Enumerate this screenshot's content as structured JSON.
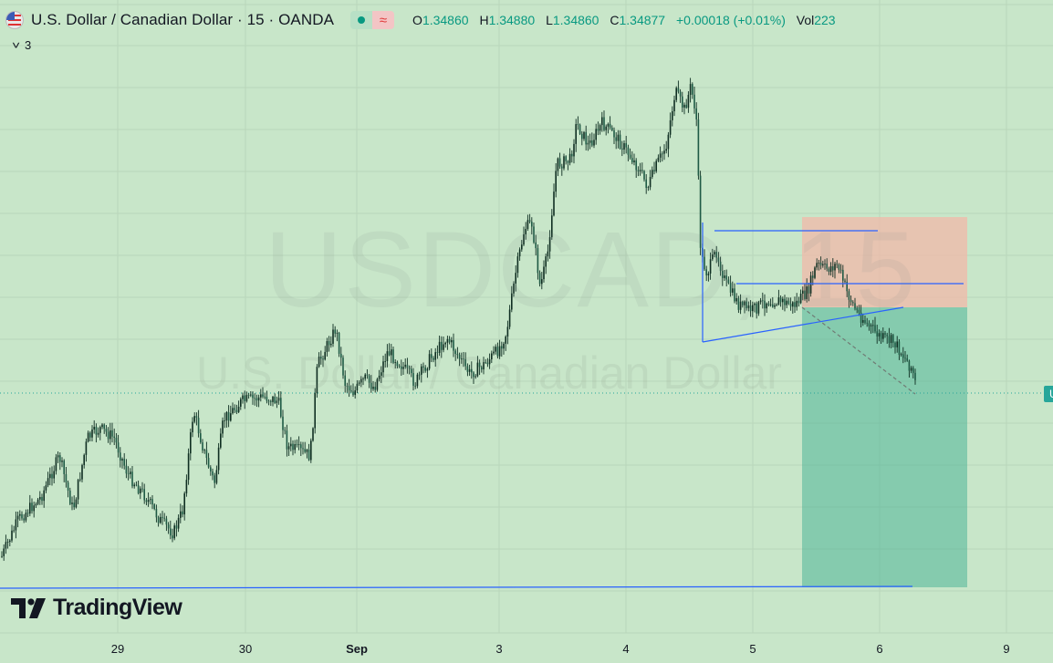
{
  "header": {
    "symbol_title": "U.S. Dollar / Canadian Dollar · 15 · OANDA",
    "ohlc": [
      {
        "key": "O",
        "value": "1.34860"
      },
      {
        "key": "H",
        "value": "1.34880"
      },
      {
        "key": "L",
        "value": "1.34860"
      },
      {
        "key": "C",
        "value": "1.34877"
      }
    ],
    "change": "+0.00018 (+0.01%)",
    "volume_label": "Vol",
    "volume_value": "223",
    "indicators_count": "3",
    "wave_glyph": "≈"
  },
  "watermark": {
    "symbol": "USDCAD, 15",
    "description": "U.S. Dollar / Canadian Dollar"
  },
  "branding": {
    "logo_text": "TradingView"
  },
  "price_tag_text": "U",
  "x_axis": {
    "labels": [
      {
        "text": "29",
        "bold": false
      },
      {
        "text": "30",
        "bold": false
      },
      {
        "text": "Sep",
        "bold": true
      },
      {
        "text": "3",
        "bold": false
      },
      {
        "text": "4",
        "bold": false
      },
      {
        "text": "5",
        "bold": false
      },
      {
        "text": "6",
        "bold": false
      },
      {
        "text": "9",
        "bold": false
      }
    ]
  },
  "colors": {
    "background": "#c8e6c9",
    "candle": "#0f2e22",
    "up_accent": "#089981",
    "down_accent": "#e03b3b",
    "trendline": "#2962ff",
    "stop_zone": "#f2b8a8",
    "target_zone": "#4fb598"
  }
}
